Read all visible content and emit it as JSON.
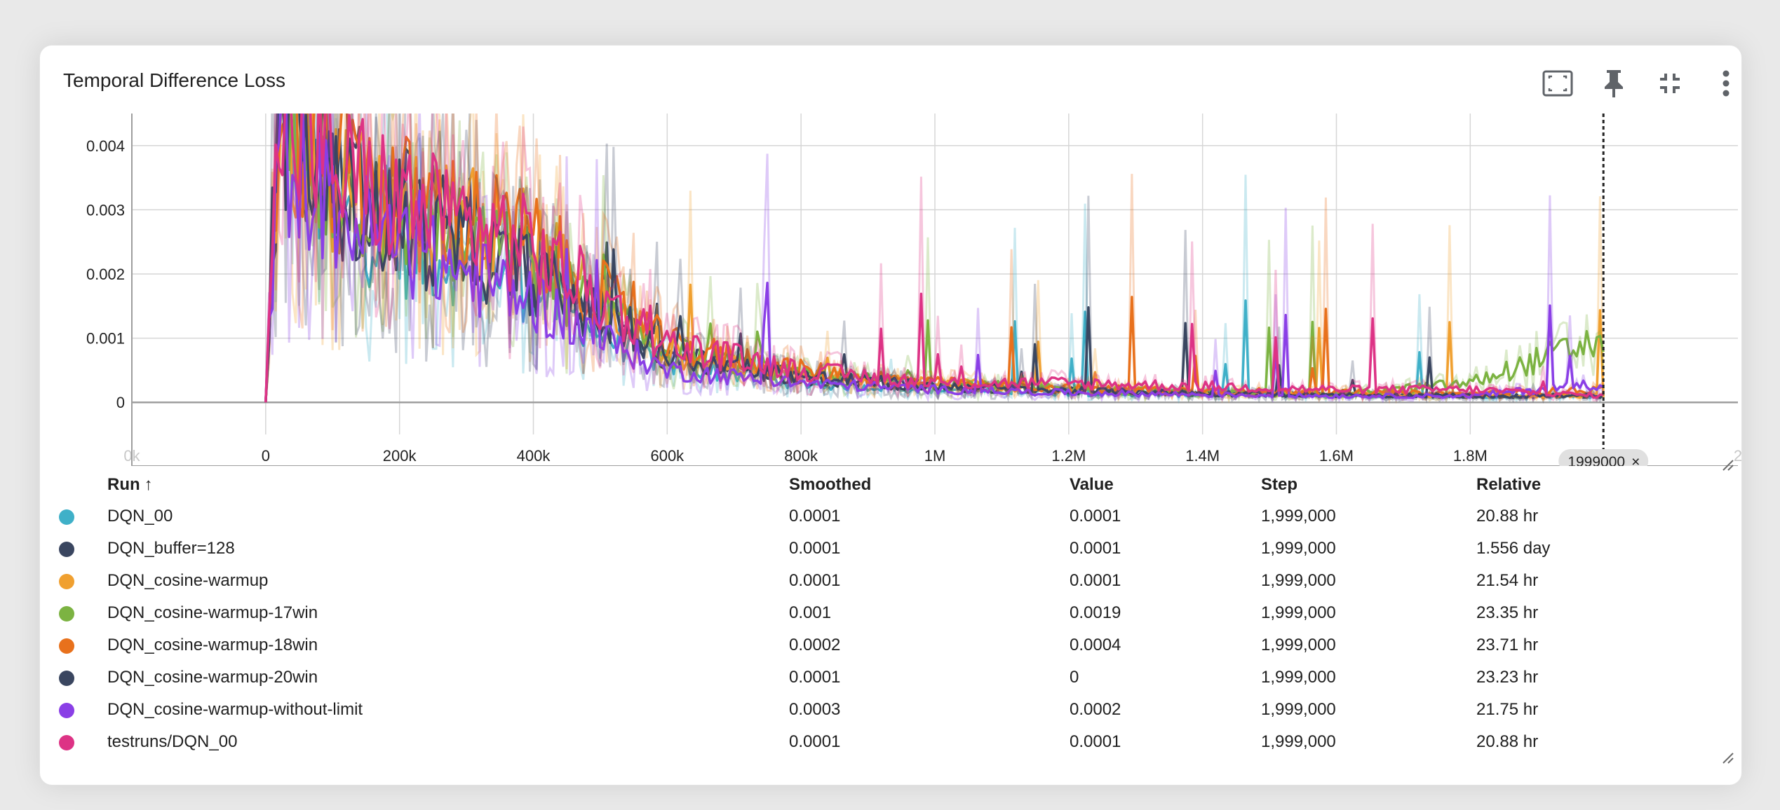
{
  "card": {
    "title": "Temporal Difference Loss",
    "toolbar": [
      {
        "name": "fit-domain-button",
        "icon": "fit-screen-icon"
      },
      {
        "name": "pin-button",
        "icon": "pin-icon"
      },
      {
        "name": "collapse-button",
        "icon": "collapse-icon"
      },
      {
        "name": "more-menu-button",
        "icon": "more-vert-icon"
      }
    ]
  },
  "chart_data": {
    "type": "line",
    "title": "Temporal Difference Loss",
    "xlabel": "",
    "ylabel": "",
    "xlim": [
      -200000,
      2200000
    ],
    "ylim": [
      -0.0005,
      0.0045
    ],
    "x_ticks": [
      "0k",
      "0",
      "200k",
      "400k",
      "600k",
      "800k",
      "1M",
      "1.2M",
      "1.4M",
      "1.6M",
      "1.8M",
      "2"
    ],
    "y_ticks": [
      "0",
      "0.001",
      "0.002",
      "0.003",
      "0.004"
    ],
    "grid": true,
    "step_marker": {
      "step": 1999000,
      "label": "1999000"
    },
    "series": [
      {
        "name": "DQN_00",
        "color": "#3FB0C8",
        "x": [
          0,
          20000,
          100000,
          200000,
          300000,
          400000,
          500000,
          600000,
          800000,
          1000000,
          1200000,
          1400000,
          1600000,
          1800000,
          1999000
        ],
        "y": [
          0,
          0.0042,
          0.003,
          0.0024,
          0.0022,
          0.0018,
          0.0011,
          0.0006,
          0.0003,
          0.0002,
          0.00015,
          0.00012,
          0.0001,
          0.0001,
          0.0001
        ]
      },
      {
        "name": "DQN_buffer=128",
        "color": "#3A4660",
        "x": [
          0,
          20000,
          100000,
          200000,
          300000,
          400000,
          500000,
          600000,
          800000,
          1000000,
          1200000,
          1400000,
          1600000,
          1800000,
          1999000
        ],
        "y": [
          0,
          0.0045,
          0.0036,
          0.003,
          0.0027,
          0.0022,
          0.0014,
          0.0007,
          0.0004,
          0.00025,
          0.00018,
          0.00014,
          0.00012,
          0.0001,
          0.0001
        ]
      },
      {
        "name": "DQN_cosine-warmup",
        "color": "#F0A030",
        "x": [
          0,
          20000,
          100000,
          200000,
          300000,
          400000,
          500000,
          600000,
          800000,
          1000000,
          1200000,
          1400000,
          1600000,
          1800000,
          1999000
        ],
        "y": [
          0,
          0.0044,
          0.0035,
          0.003,
          0.0028,
          0.0024,
          0.0016,
          0.0008,
          0.0004,
          0.0003,
          0.0002,
          0.00016,
          0.00013,
          0.00011,
          0.0001
        ]
      },
      {
        "name": "DQN_cosine-warmup-17win",
        "color": "#7CB342",
        "x": [
          0,
          20000,
          100000,
          200000,
          300000,
          400000,
          500000,
          600000,
          800000,
          1000000,
          1200000,
          1400000,
          1600000,
          1800000,
          1999000
        ],
        "y": [
          0,
          0.0043,
          0.0034,
          0.0028,
          0.0025,
          0.0021,
          0.0014,
          0.0008,
          0.0004,
          0.0003,
          0.0002,
          0.00015,
          0.00012,
          0.0003,
          0.001
        ]
      },
      {
        "name": "DQN_cosine-warmup-18win",
        "color": "#E8711C",
        "x": [
          0,
          20000,
          100000,
          200000,
          300000,
          400000,
          500000,
          600000,
          800000,
          1000000,
          1200000,
          1400000,
          1600000,
          1800000,
          1999000
        ],
        "y": [
          0,
          0.0045,
          0.0038,
          0.0032,
          0.0029,
          0.0025,
          0.0017,
          0.0009,
          0.0005,
          0.0003,
          0.00022,
          0.00018,
          0.00015,
          0.00013,
          0.0002
        ]
      },
      {
        "name": "DQN_cosine-warmup-20win",
        "color": "#3A4660",
        "x": [
          0,
          20000,
          100000,
          200000,
          300000,
          400000,
          500000,
          600000,
          800000,
          1000000,
          1200000,
          1400000,
          1600000,
          1800000,
          1999000
        ],
        "y": [
          0,
          0.0042,
          0.0033,
          0.0027,
          0.0024,
          0.002,
          0.0013,
          0.0007,
          0.0004,
          0.00025,
          0.00018,
          0.00014,
          0.00012,
          0.0001,
          0.0001
        ]
      },
      {
        "name": "DQN_cosine-warmup-without-limit",
        "color": "#8A3FE6",
        "x": [
          0,
          20000,
          100000,
          200000,
          300000,
          400000,
          500000,
          600000,
          800000,
          1000000,
          1200000,
          1400000,
          1600000,
          1800000,
          1999000
        ],
        "y": [
          0,
          0.004,
          0.003,
          0.0024,
          0.002,
          0.0016,
          0.001,
          0.0005,
          0.0003,
          0.0002,
          0.00015,
          0.00012,
          0.0001,
          0.0001,
          0.0003
        ]
      },
      {
        "name": "testruns/DQN_00",
        "color": "#DD3385",
        "x": [
          0,
          20000,
          100000,
          200000,
          300000,
          400000,
          500000,
          600000,
          800000,
          1000000,
          1200000,
          1400000,
          1600000,
          1800000,
          1999000
        ],
        "y": [
          0,
          0.0044,
          0.0037,
          0.0031,
          0.0028,
          0.0024,
          0.0016,
          0.0009,
          0.0005,
          0.0003,
          0.0003,
          0.00025,
          0.0002,
          0.0002,
          0.0001
        ]
      }
    ]
  },
  "table": {
    "headers": {
      "run": "Run",
      "sort_arrow": "↑",
      "smoothed": "Smoothed",
      "value": "Value",
      "step": "Step",
      "relative": "Relative"
    },
    "rows": [
      {
        "color": "#3FB0C8",
        "run": "DQN_00",
        "smoothed": "0.0001",
        "value": "0.0001",
        "step": "1,999,000",
        "relative": "20.88 hr"
      },
      {
        "color": "#3A4660",
        "run": "DQN_buffer=128",
        "smoothed": "0.0001",
        "value": "0.0001",
        "step": "1,999,000",
        "relative": "1.556 day"
      },
      {
        "color": "#F0A030",
        "run": "DQN_cosine-warmup",
        "smoothed": "0.0001",
        "value": "0.0001",
        "step": "1,999,000",
        "relative": "21.54 hr"
      },
      {
        "color": "#7CB342",
        "run": "DQN_cosine-warmup-17win",
        "smoothed": "0.001",
        "value": "0.0019",
        "step": "1,999,000",
        "relative": "23.35 hr"
      },
      {
        "color": "#E8711C",
        "run": "DQN_cosine-warmup-18win",
        "smoothed": "0.0002",
        "value": "0.0004",
        "step": "1,999,000",
        "relative": "23.71 hr"
      },
      {
        "color": "#3A4660",
        "run": "DQN_cosine-warmup-20win",
        "smoothed": "0.0001",
        "value": "0",
        "step": "1,999,000",
        "relative": "23.23 hr"
      },
      {
        "color": "#8A3FE6",
        "run": "DQN_cosine-warmup-without-limit",
        "smoothed": "0.0003",
        "value": "0.0002",
        "step": "1,999,000",
        "relative": "21.75 hr"
      },
      {
        "color": "#DD3385",
        "run": "testruns/DQN_00",
        "smoothed": "0.0001",
        "value": "0.0001",
        "step": "1,999,000",
        "relative": "20.88 hr"
      }
    ]
  }
}
